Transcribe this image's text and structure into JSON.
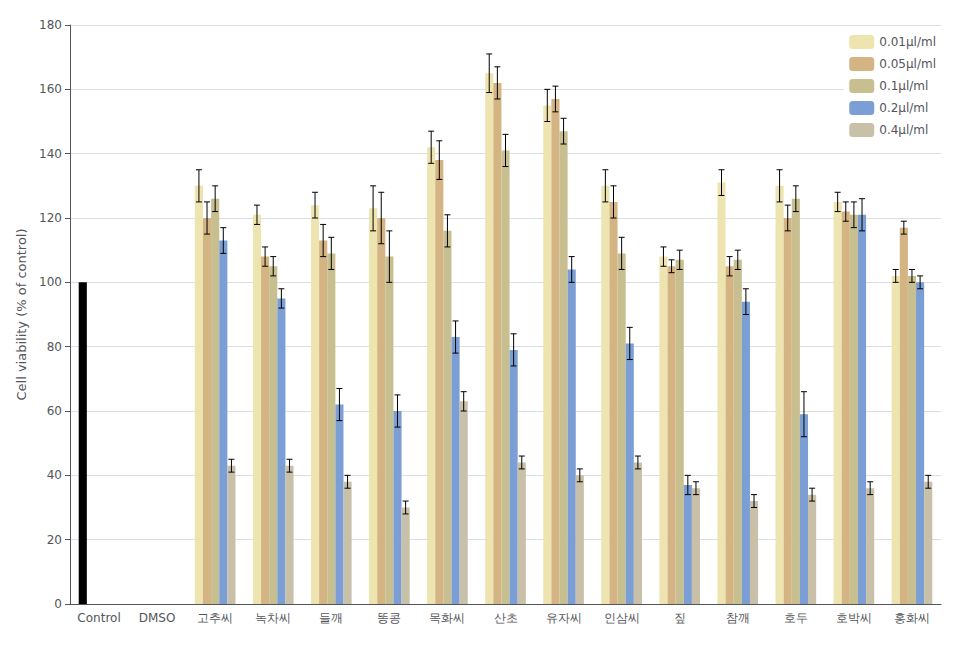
{
  "chart_data": {
    "type": "bar",
    "categories": [
      "Control",
      "DMSO",
      "고추씨",
      "녹차씨",
      "들깨",
      "똥콩",
      "목화씨",
      "산초",
      "유자씨",
      "인삼씨",
      "짚",
      "참깨",
      "호두",
      "호박씨",
      "홍화씨"
    ],
    "ylabel": "Cell viability (% of control)",
    "ylim": [
      0,
      180
    ],
    "yticks": [
      0,
      20,
      40,
      60,
      80,
      100,
      120,
      140,
      160,
      180
    ],
    "grid": true,
    "legend": "upper right",
    "series": [
      {
        "name": "0.01μl/ml",
        "color": "#EDE4B0",
        "colors": [
          "#000000",
          "#EDE4B0",
          "#EDE4B0",
          "#EDE4B0",
          "#EDE4B0",
          "#EDE4B0",
          "#EDE4B0",
          "#EDE4B0",
          "#EDE4B0",
          "#EDE4B0",
          "#EDE4B0",
          "#EDE4B0",
          "#EDE4B0",
          "#EDE4B0",
          "#EDE4B0"
        ],
        "values": [
          100,
          null,
          130,
          121,
          124,
          123,
          142,
          165,
          155,
          130,
          108,
          131,
          130,
          125,
          102
        ],
        "errors": [
          null,
          null,
          5,
          3,
          4,
          7,
          5,
          6,
          5,
          5,
          3,
          4,
          5,
          3,
          2
        ]
      },
      {
        "name": "0.05μl/ml",
        "color": "#D4B483",
        "values": [
          null,
          null,
          120,
          108,
          113,
          120,
          138,
          162,
          157,
          125,
          105,
          105,
          120,
          122,
          117
        ],
        "errors": [
          null,
          null,
          5,
          3,
          5,
          8,
          6,
          5,
          4,
          5,
          2,
          3,
          4,
          3,
          2
        ]
      },
      {
        "name": "0.1μl/ml",
        "color": "#C8BF90",
        "values": [
          null,
          null,
          126,
          105,
          109,
          108,
          116,
          141,
          147,
          109,
          107,
          107,
          126,
          121,
          102
        ],
        "errors": [
          null,
          null,
          4,
          3,
          5,
          8,
          5,
          5,
          4,
          5,
          3,
          3,
          4,
          4,
          2
        ]
      },
      {
        "name": "0.2μl/ml",
        "color": "#7B9FD4",
        "values": [
          null,
          null,
          113,
          95,
          62,
          60,
          83,
          79,
          104,
          81,
          37,
          94,
          59,
          121,
          100
        ],
        "errors": [
          null,
          null,
          4,
          3,
          5,
          5,
          5,
          5,
          4,
          5,
          3,
          4,
          7,
          5,
          2
        ]
      },
      {
        "name": "0.4μl/ml",
        "color": "#C8C0A8",
        "values": [
          null,
          null,
          43,
          43,
          38,
          30,
          63,
          44,
          40,
          44,
          36,
          32,
          34,
          36,
          38
        ],
        "errors": [
          null,
          null,
          2,
          2,
          2,
          2,
          3,
          2,
          2,
          2,
          2,
          2,
          2,
          2,
          2
        ]
      }
    ]
  }
}
